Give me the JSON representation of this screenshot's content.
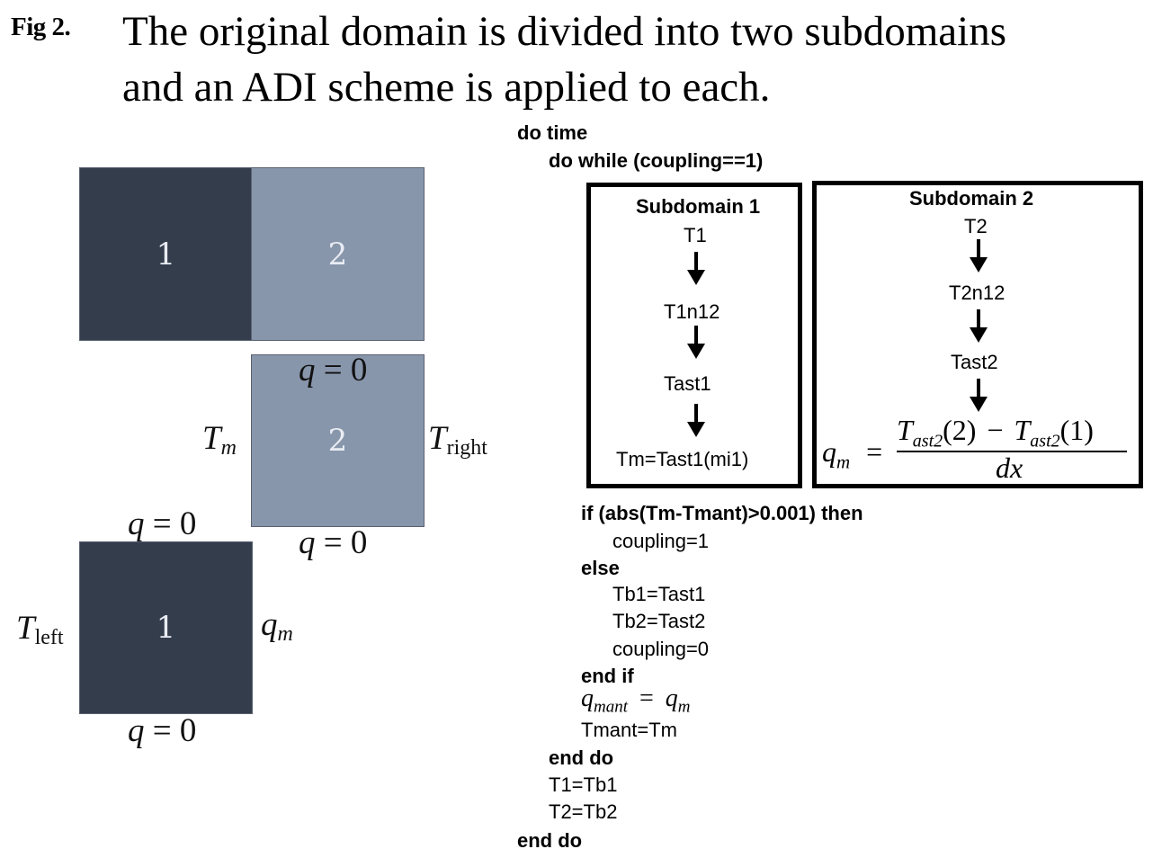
{
  "caption": {
    "label": "Fig 2.",
    "line1": "The original domain is divided into two subdomains",
    "line2": "and an ADI scheme is applied to each."
  },
  "diagram": {
    "top_box_1": "1",
    "top_box_2": "2",
    "mid_box_2": "2",
    "bottom_box_1": "1",
    "labels": {
      "q": "q",
      "eq_zero": "= 0",
      "T": "T",
      "m": "m",
      "right": "right",
      "left": "left"
    }
  },
  "pseudocode": {
    "do_time": "do time",
    "do_while": "do while (coupling==1)",
    "if_line": "if (abs(Tm-Tmant)>0.001) then",
    "coupling1": "coupling=1",
    "else": "else",
    "tb1": "Tb1=Tast1",
    "tb2": "Tb2=Tast2",
    "coupling0": "coupling=0",
    "end_if": "end if",
    "qmant_q": "q",
    "qmant_sub": "mant",
    "qmant_eq": "=",
    "qmant_q2": "q",
    "qmant_sub2": "m",
    "tmant": "Tmant=Tm",
    "end_do_inner": "end do",
    "t1": "T1=Tb1",
    "t2": "T2=Tb2",
    "end_do_outer": "end do"
  },
  "subdomain1": {
    "title": "Subdomain 1",
    "steps": [
      "T1",
      "T1n12",
      "Tast1",
      "Tm=Tast1(mi1)"
    ]
  },
  "subdomain2": {
    "title": "Subdomain 2",
    "steps": [
      "T2",
      "T2n12",
      "Tast2"
    ],
    "formula": {
      "lhs_q": "q",
      "lhs_sub": "m",
      "eq": "=",
      "num_T": "T",
      "num_sub": "ast2",
      "num_arg2": "(2)",
      "minus": "−",
      "num_T2": "T",
      "num_sub2": "ast2",
      "num_arg1": "(1)",
      "den": "dx"
    }
  }
}
